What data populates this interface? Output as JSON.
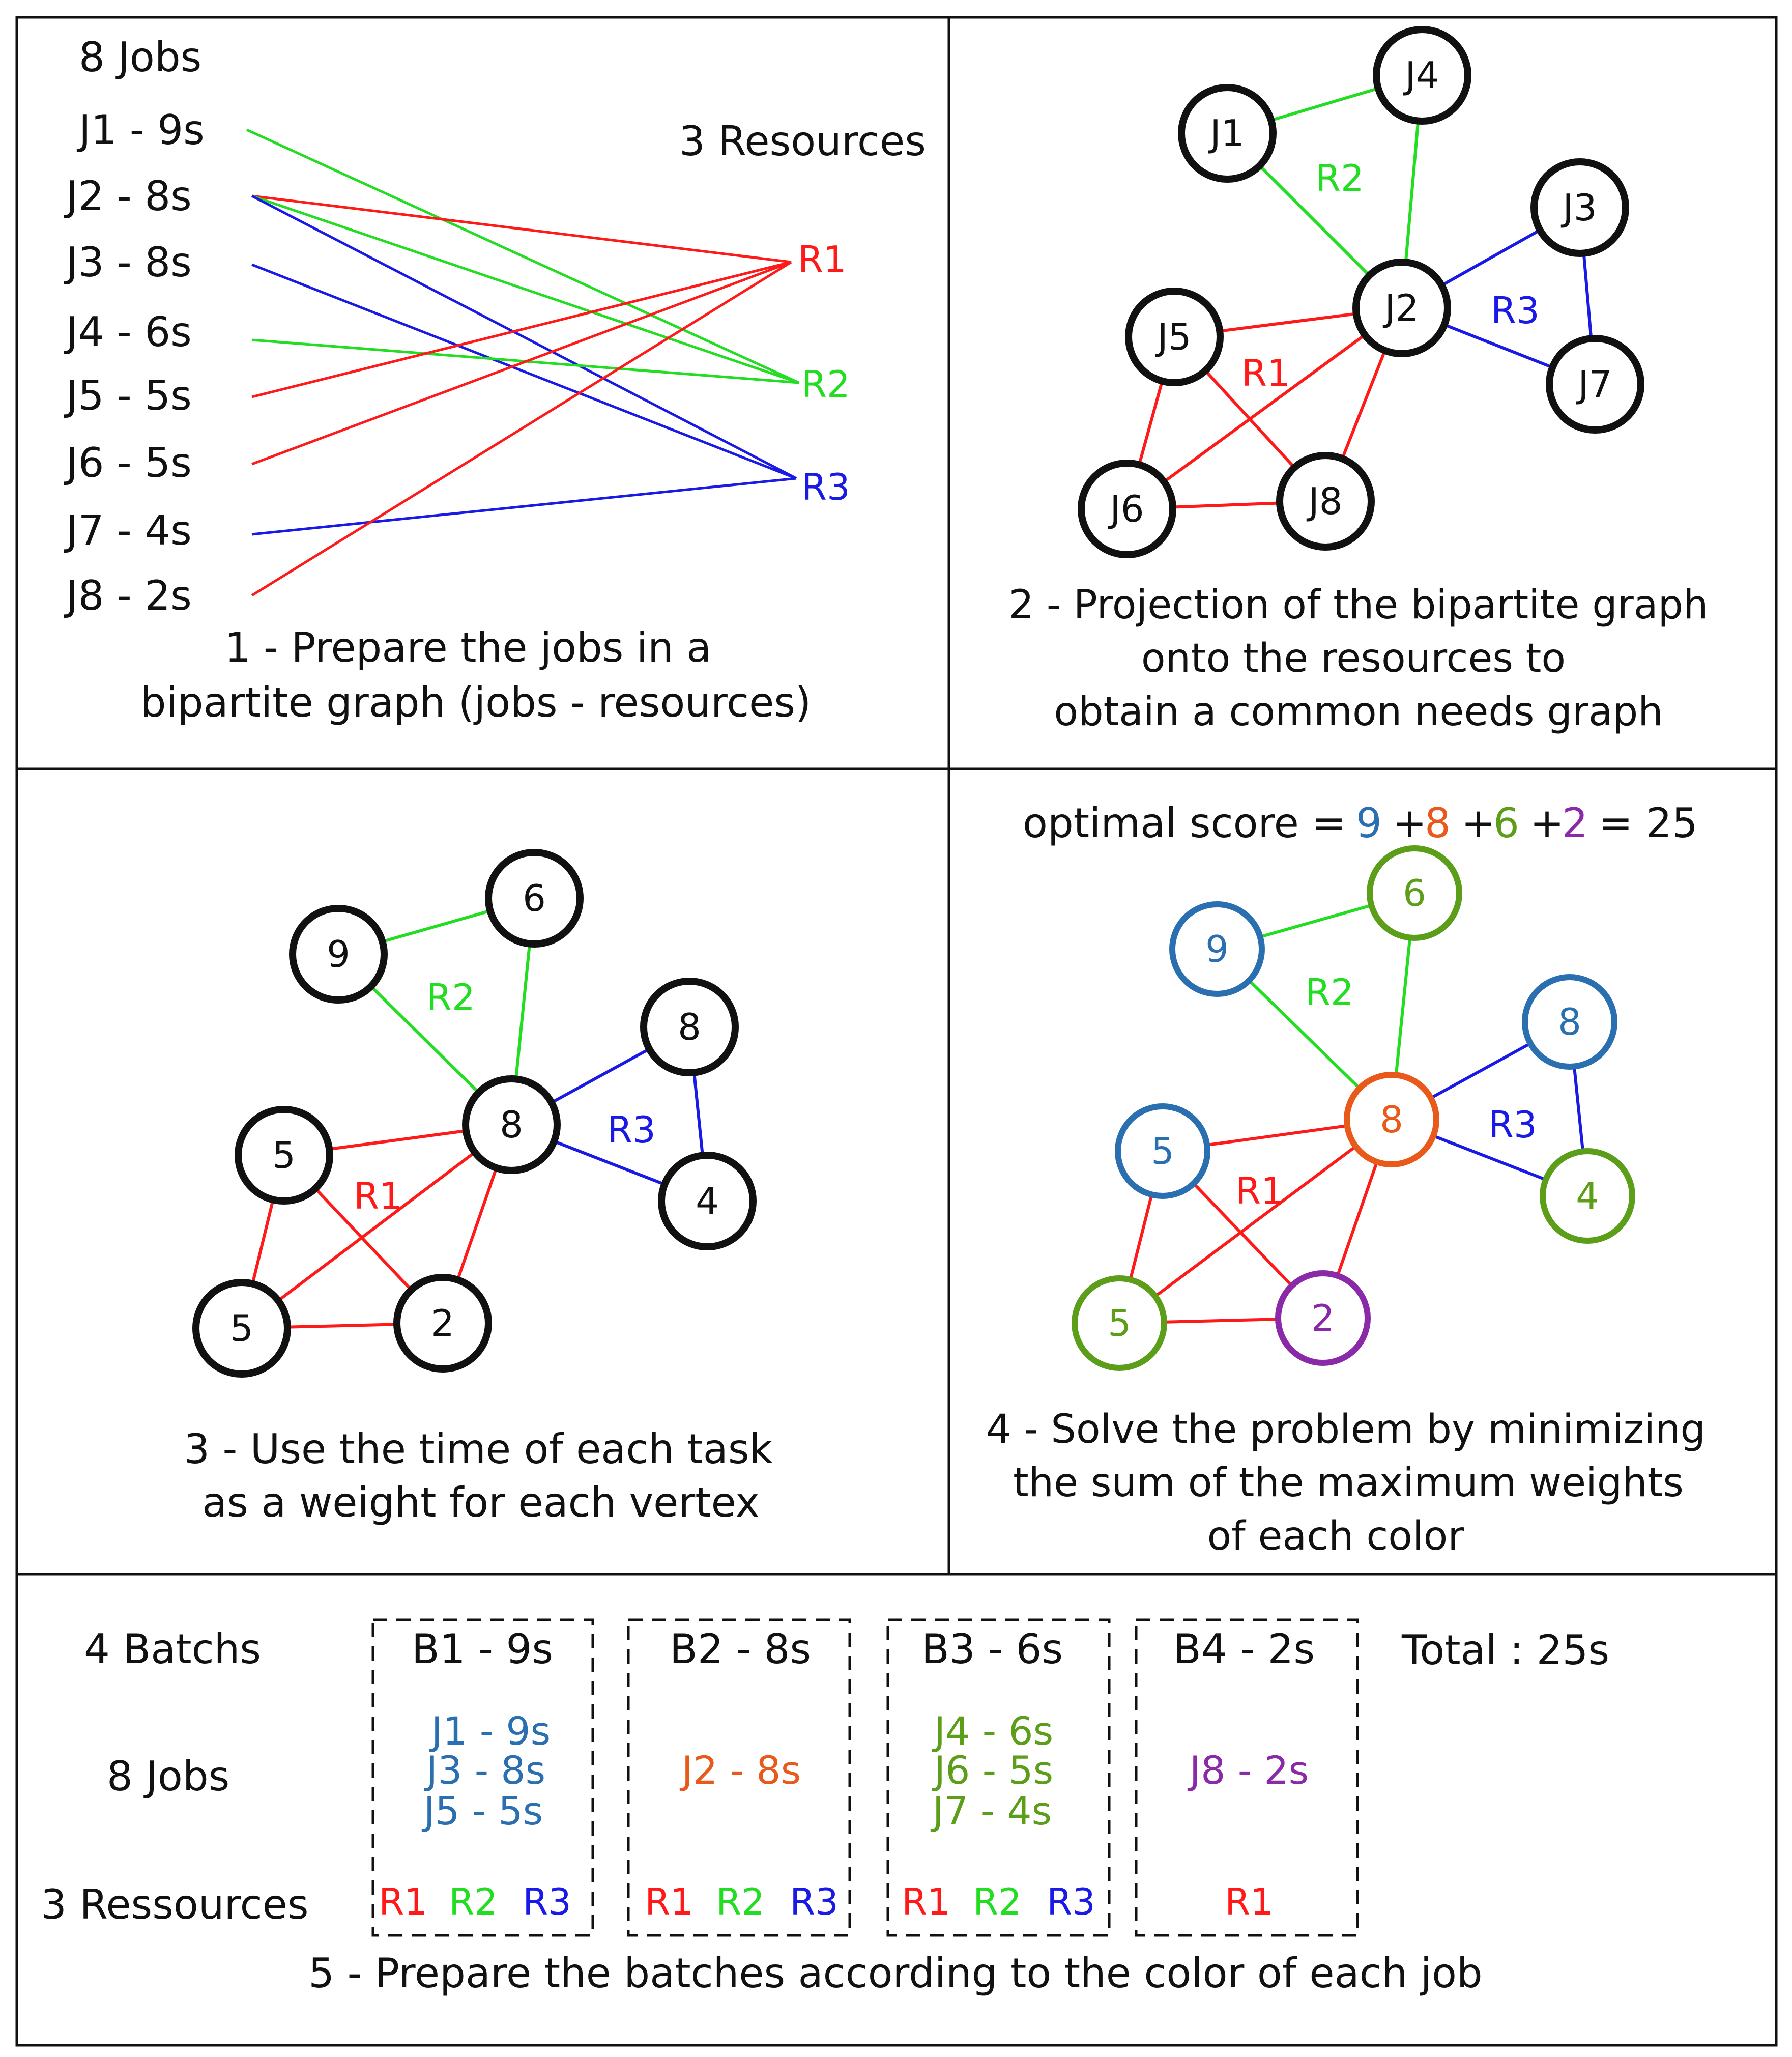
{
  "colors": {
    "red": "#ff1a1a",
    "green": "#22dd22",
    "blue": "#1a1ae6",
    "c_blue": "#2a6fb0",
    "c_orange": "#e8591a",
    "c_green": "#5c9e1a",
    "c_purple": "#8a2aa8",
    "black": "#111111"
  },
  "panel1": {
    "jobs_title": "8 Jobs",
    "resources_title": "3 Resources",
    "jobs": [
      "J1 - 9s",
      "J2 - 8s",
      "J3 - 8s",
      "J4 - 6s",
      "J5 - 5s",
      "J6 - 5s",
      "J7 - 4s",
      "J8 - 2s"
    ],
    "resources": [
      "R1",
      "R2",
      "R3"
    ],
    "caption_line1": "1 - Prepare the jobs in a",
    "caption_line2": "bipartite graph (jobs - resources)"
  },
  "panel2": {
    "nodes": [
      "J1",
      "J4",
      "J3",
      "J2",
      "J5",
      "J7",
      "J6",
      "J8"
    ],
    "groups": [
      "R2",
      "R3",
      "R1"
    ],
    "caption_line1": "2 - Projection of the bipartite graph",
    "caption_line2": "onto the resources to",
    "caption_line3": "obtain a common needs graph"
  },
  "panel3": {
    "nodes": [
      "9",
      "6",
      "8",
      "5",
      "8",
      "4",
      "5",
      "2"
    ],
    "groups": [
      "R2",
      "R3",
      "R1"
    ],
    "caption_line1": "3 - Use the time of each task",
    "caption_line2": "as a weight for each vertex"
  },
  "panel4": {
    "score_prefix": "optimal score =",
    "score_terms": [
      "9",
      "+",
      "8",
      "+",
      "6",
      "+",
      "2",
      "="
    ],
    "score_total": "25",
    "nodes": [
      "9",
      "6",
      "8",
      "5",
      "8",
      "4",
      "5",
      "2"
    ],
    "groups": [
      "R2",
      "R3",
      "R1"
    ],
    "caption_line1": "4 - Solve the problem by minimizing",
    "caption_line2": "the sum of the maximum weights",
    "caption_line3": "of each color"
  },
  "panel5": {
    "batches_label": "4 Batchs",
    "jobs_label": "8 Jobs",
    "resources_label": "3 Ressources",
    "total": "Total : 25s",
    "batches": [
      {
        "title": "B1 - 9s",
        "jobs": [
          "J1 - 9s",
          "J3 - 8s",
          "J5 - 5s"
        ],
        "resources": [
          "R1",
          "R2",
          "R3"
        ]
      },
      {
        "title": "B2 - 8s",
        "jobs": [
          "J2 - 8s"
        ],
        "resources": [
          "R1",
          "R2",
          "R3"
        ]
      },
      {
        "title": "B3 - 6s",
        "jobs": [
          "J4 - 6s",
          "J6 - 5s",
          "J7 - 4s"
        ],
        "resources": [
          "R1",
          "R2",
          "R3"
        ]
      },
      {
        "title": "B4 - 2s",
        "jobs": [
          "J8 - 2s"
        ],
        "resources": [
          "R1"
        ]
      }
    ],
    "caption": "5 - Prepare the batches according to the color of each job"
  }
}
